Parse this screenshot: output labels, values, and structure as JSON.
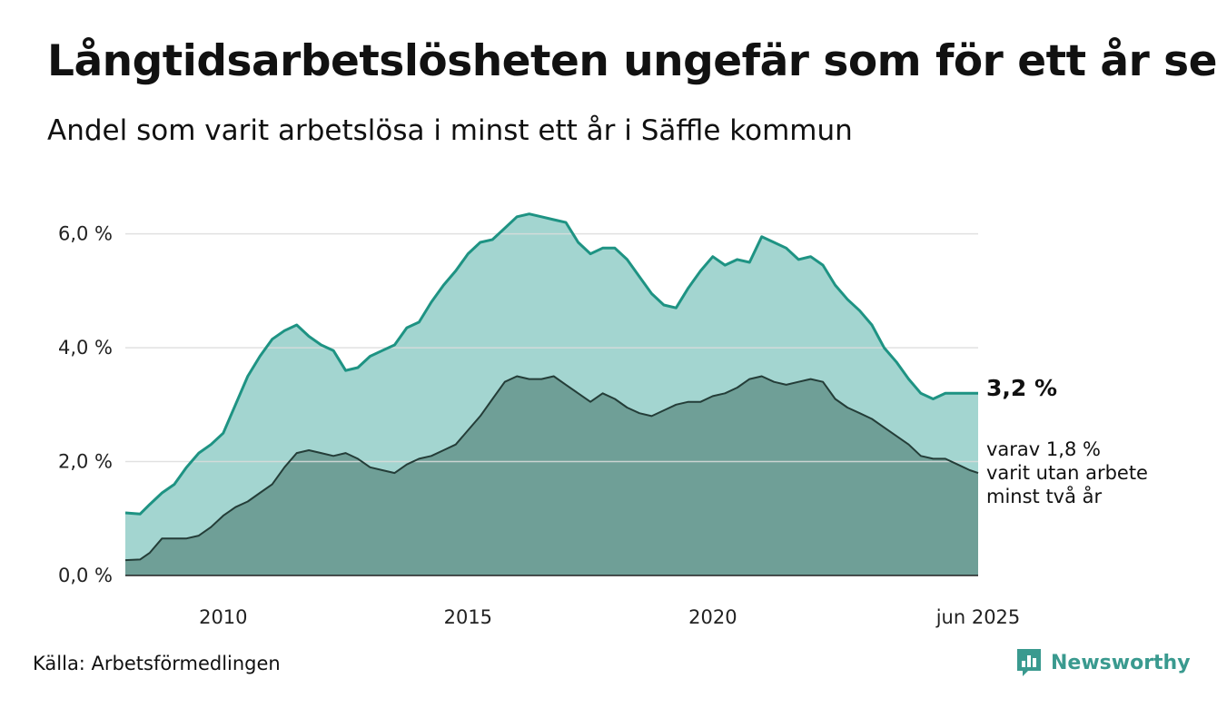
{
  "title": "Långtidsarbetslösheten ungefär som för ett år sen",
  "subtitle": "Andel som varit arbetslösa i minst ett år i Säffle kommun",
  "source": "Källa: Arbetsförmedlingen",
  "brand": {
    "name": "Newsworthy"
  },
  "colors": {
    "series1_fill": "#a3d5d0",
    "series1_line": "#1e9383",
    "series2_fill": "#6f9f97",
    "series2_line": "#243d38",
    "grid": "#dcdcdc",
    "brand": "#3a9a8f"
  },
  "chart_data": {
    "type": "area",
    "xlim": [
      2008.0,
      2025.42
    ],
    "ylim": [
      0,
      6.6
    ],
    "grid": true,
    "y_ticks": [
      {
        "value": 0,
        "label": "0,0 %"
      },
      {
        "value": 2,
        "label": "2,0 %"
      },
      {
        "value": 4,
        "label": "4,0 %"
      },
      {
        "value": 6,
        "label": "6,0 %"
      }
    ],
    "x_ticks": [
      {
        "value": 2010,
        "label": "2010"
      },
      {
        "value": 2015,
        "label": "2015"
      },
      {
        "value": 2020,
        "label": "2020"
      },
      {
        "value": 2025.42,
        "label": "jun 2025"
      }
    ],
    "series": [
      {
        "values": [
          [
            2008.0,
            1.1
          ],
          [
            2008.3,
            1.08
          ],
          [
            2008.5,
            1.25
          ],
          [
            2008.75,
            1.45
          ],
          [
            2009.0,
            1.6
          ],
          [
            2009.25,
            1.9
          ],
          [
            2009.5,
            2.15
          ],
          [
            2009.75,
            2.3
          ],
          [
            2010.0,
            2.5
          ],
          [
            2010.25,
            3.0
          ],
          [
            2010.5,
            3.5
          ],
          [
            2010.75,
            3.85
          ],
          [
            2011.0,
            4.15
          ],
          [
            2011.25,
            4.3
          ],
          [
            2011.5,
            4.4
          ],
          [
            2011.75,
            4.2
          ],
          [
            2012.0,
            4.05
          ],
          [
            2012.25,
            3.95
          ],
          [
            2012.5,
            3.6
          ],
          [
            2012.75,
            3.65
          ],
          [
            2013.0,
            3.85
          ],
          [
            2013.25,
            3.95
          ],
          [
            2013.5,
            4.05
          ],
          [
            2013.75,
            4.35
          ],
          [
            2014.0,
            4.45
          ],
          [
            2014.25,
            4.8
          ],
          [
            2014.5,
            5.1
          ],
          [
            2014.75,
            5.35
          ],
          [
            2015.0,
            5.65
          ],
          [
            2015.25,
            5.85
          ],
          [
            2015.5,
            5.9
          ],
          [
            2015.75,
            6.1
          ],
          [
            2016.0,
            6.3
          ],
          [
            2016.25,
            6.35
          ],
          [
            2016.5,
            6.3
          ],
          [
            2016.75,
            6.25
          ],
          [
            2017.0,
            6.2
          ],
          [
            2017.25,
            5.85
          ],
          [
            2017.5,
            5.65
          ],
          [
            2017.75,
            5.75
          ],
          [
            2018.0,
            5.75
          ],
          [
            2018.25,
            5.55
          ],
          [
            2018.5,
            5.25
          ],
          [
            2018.75,
            4.95
          ],
          [
            2019.0,
            4.75
          ],
          [
            2019.25,
            4.7
          ],
          [
            2019.5,
            5.05
          ],
          [
            2019.75,
            5.35
          ],
          [
            2020.0,
            5.6
          ],
          [
            2020.25,
            5.45
          ],
          [
            2020.5,
            5.55
          ],
          [
            2020.75,
            5.5
          ],
          [
            2021.0,
            5.95
          ],
          [
            2021.25,
            5.85
          ],
          [
            2021.5,
            5.75
          ],
          [
            2021.75,
            5.55
          ],
          [
            2022.0,
            5.6
          ],
          [
            2022.25,
            5.45
          ],
          [
            2022.5,
            5.1
          ],
          [
            2022.75,
            4.85
          ],
          [
            2023.0,
            4.65
          ],
          [
            2023.25,
            4.4
          ],
          [
            2023.5,
            4.0
          ],
          [
            2023.75,
            3.75
          ],
          [
            2024.0,
            3.45
          ],
          [
            2024.25,
            3.2
          ],
          [
            2024.5,
            3.1
          ],
          [
            2024.75,
            3.2
          ],
          [
            2025.0,
            3.2
          ],
          [
            2025.25,
            3.2
          ],
          [
            2025.42,
            3.2
          ]
        ],
        "end_label": "3,2 %"
      },
      {
        "values": [
          [
            2008.0,
            0.27
          ],
          [
            2008.3,
            0.28
          ],
          [
            2008.5,
            0.4
          ],
          [
            2008.75,
            0.65
          ],
          [
            2009.0,
            0.65
          ],
          [
            2009.25,
            0.65
          ],
          [
            2009.5,
            0.7
          ],
          [
            2009.75,
            0.85
          ],
          [
            2010.0,
            1.05
          ],
          [
            2010.25,
            1.2
          ],
          [
            2010.5,
            1.3
          ],
          [
            2010.75,
            1.45
          ],
          [
            2011.0,
            1.6
          ],
          [
            2011.25,
            1.9
          ],
          [
            2011.5,
            2.15
          ],
          [
            2011.75,
            2.2
          ],
          [
            2012.0,
            2.15
          ],
          [
            2012.25,
            2.1
          ],
          [
            2012.5,
            2.15
          ],
          [
            2012.75,
            2.05
          ],
          [
            2013.0,
            1.9
          ],
          [
            2013.25,
            1.85
          ],
          [
            2013.5,
            1.8
          ],
          [
            2013.75,
            1.95
          ],
          [
            2014.0,
            2.05
          ],
          [
            2014.25,
            2.1
          ],
          [
            2014.5,
            2.2
          ],
          [
            2014.75,
            2.3
          ],
          [
            2015.0,
            2.55
          ],
          [
            2015.25,
            2.8
          ],
          [
            2015.5,
            3.1
          ],
          [
            2015.75,
            3.4
          ],
          [
            2016.0,
            3.5
          ],
          [
            2016.25,
            3.45
          ],
          [
            2016.5,
            3.45
          ],
          [
            2016.75,
            3.5
          ],
          [
            2017.0,
            3.35
          ],
          [
            2017.25,
            3.2
          ],
          [
            2017.5,
            3.05
          ],
          [
            2017.75,
            3.2
          ],
          [
            2018.0,
            3.1
          ],
          [
            2018.25,
            2.95
          ],
          [
            2018.5,
            2.85
          ],
          [
            2018.75,
            2.8
          ],
          [
            2019.0,
            2.9
          ],
          [
            2019.25,
            3.0
          ],
          [
            2019.5,
            3.05
          ],
          [
            2019.75,
            3.05
          ],
          [
            2020.0,
            3.15
          ],
          [
            2020.25,
            3.2
          ],
          [
            2020.5,
            3.3
          ],
          [
            2020.75,
            3.45
          ],
          [
            2021.0,
            3.5
          ],
          [
            2021.25,
            3.4
          ],
          [
            2021.5,
            3.35
          ],
          [
            2021.75,
            3.4
          ],
          [
            2022.0,
            3.45
          ],
          [
            2022.25,
            3.4
          ],
          [
            2022.5,
            3.1
          ],
          [
            2022.75,
            2.95
          ],
          [
            2023.0,
            2.85
          ],
          [
            2023.25,
            2.75
          ],
          [
            2023.5,
            2.6
          ],
          [
            2023.75,
            2.45
          ],
          [
            2024.0,
            2.3
          ],
          [
            2024.25,
            2.1
          ],
          [
            2024.5,
            2.05
          ],
          [
            2024.75,
            2.05
          ],
          [
            2025.0,
            1.95
          ],
          [
            2025.25,
            1.85
          ],
          [
            2025.42,
            1.8
          ]
        ],
        "end_label": [
          "varav 1,8 %",
          "varit utan arbete",
          "minst två år"
        ]
      }
    ]
  }
}
